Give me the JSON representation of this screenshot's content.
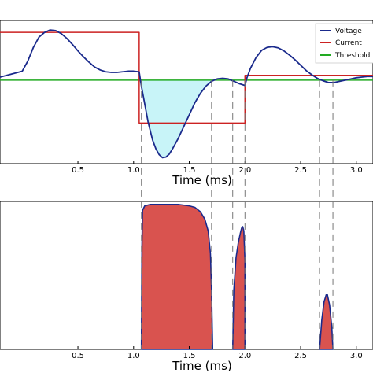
{
  "chart_data": [
    {
      "type": "line",
      "xlabel": "Time (ms)",
      "ylabel": "",
      "xlim": [
        -0.2,
        3.15
      ],
      "ylim": [
        -1.4,
        1.0
      ],
      "x_ticks": [
        0.5,
        1.0,
        1.5,
        2.0,
        2.5,
        3.0
      ],
      "x_tick_labels": [
        "0.5",
        "1.0",
        "1.5",
        "2.0",
        "2.5",
        "3.0"
      ],
      "grid": false,
      "legend_position": "top-right",
      "threshold": 0.0,
      "fill_color": "#c8f4f8",
      "series": [
        {
          "name": "Voltage",
          "color": "#1a2a8c",
          "x": [
            -0.2,
            -0.1,
            0.0,
            0.05,
            0.1,
            0.15,
            0.2,
            0.25,
            0.3,
            0.35,
            0.4,
            0.45,
            0.5,
            0.55,
            0.6,
            0.65,
            0.7,
            0.75,
            0.8,
            0.85,
            0.9,
            0.95,
            1.0,
            1.05,
            1.07,
            1.09,
            1.11,
            1.13,
            1.15,
            1.17,
            1.2,
            1.23,
            1.26,
            1.29,
            1.32,
            1.35,
            1.4,
            1.45,
            1.5,
            1.55,
            1.6,
            1.65,
            1.7,
            1.75,
            1.8,
            1.85,
            1.9,
            1.95,
            2.0,
            2.02,
            2.05,
            2.1,
            2.15,
            2.2,
            2.25,
            2.3,
            2.35,
            2.4,
            2.45,
            2.5,
            2.55,
            2.6,
            2.65,
            2.7,
            2.75,
            2.8,
            2.85,
            2.9,
            2.95,
            3.0,
            3.05,
            3.1,
            3.15
          ],
          "y": [
            0.05,
            0.1,
            0.15,
            0.32,
            0.55,
            0.72,
            0.8,
            0.84,
            0.83,
            0.78,
            0.7,
            0.6,
            0.49,
            0.39,
            0.3,
            0.22,
            0.17,
            0.14,
            0.13,
            0.13,
            0.14,
            0.15,
            0.15,
            0.14,
            -0.1,
            -0.3,
            -0.5,
            -0.7,
            -0.85,
            -1.0,
            -1.15,
            -1.25,
            -1.3,
            -1.29,
            -1.24,
            -1.15,
            -0.98,
            -0.78,
            -0.58,
            -0.38,
            -0.22,
            -0.1,
            -0.02,
            0.02,
            0.03,
            0.02,
            -0.02,
            -0.06,
            -0.09,
            0.05,
            0.2,
            0.38,
            0.5,
            0.55,
            0.56,
            0.54,
            0.49,
            0.42,
            0.34,
            0.25,
            0.16,
            0.09,
            0.03,
            -0.01,
            -0.04,
            -0.04,
            -0.02,
            0.0,
            0.02,
            0.04,
            0.05,
            0.06,
            0.06
          ]
        },
        {
          "name": "Current",
          "color": "#cc2222",
          "x": [
            -0.2,
            1.05,
            1.05,
            2.0,
            2.0,
            3.15
          ],
          "y": [
            0.8,
            0.8,
            -0.72,
            -0.72,
            0.08,
            0.08
          ]
        },
        {
          "name": "Threshold",
          "color": "#22aa22",
          "x": [
            -0.2,
            3.15
          ],
          "y": [
            0.0,
            0.0
          ]
        }
      ]
    },
    {
      "type": "area",
      "xlabel": "Time (ms)",
      "ylabel": "",
      "xlim": [
        -0.2,
        3.15
      ],
      "ylim": [
        0,
        1.0
      ],
      "x_ticks": [
        0.5,
        1.0,
        1.5,
        2.0,
        2.5,
        3.0
      ],
      "x_tick_labels": [
        "0.5",
        "1.0",
        "1.5",
        "2.0",
        "2.5",
        "3.0"
      ],
      "grid": false,
      "fill_color": "#d9534f",
      "edge_color": "#1a2a8c",
      "regions": [
        {
          "x": [
            1.07,
            1.075,
            1.08,
            1.1,
            1.15,
            1.2,
            1.3,
            1.4,
            1.5,
            1.55,
            1.6,
            1.64,
            1.67,
            1.69,
            1.7,
            1.71
          ],
          "y": [
            0,
            0.7,
            0.94,
            0.97,
            0.98,
            0.98,
            0.98,
            0.98,
            0.97,
            0.96,
            0.93,
            0.88,
            0.8,
            0.65,
            0.4,
            0
          ]
        },
        {
          "x": [
            1.89,
            1.9,
            1.92,
            1.94,
            1.96,
            1.97,
            1.98,
            1.99,
            2.0,
            2.0
          ],
          "y": [
            0,
            0.4,
            0.62,
            0.72,
            0.79,
            0.82,
            0.83,
            0.8,
            0.6,
            0
          ]
        },
        {
          "x": [
            2.67,
            2.69,
            2.71,
            2.73,
            2.74,
            2.76,
            2.78,
            2.79
          ],
          "y": [
            0,
            0.2,
            0.32,
            0.37,
            0.37,
            0.3,
            0.15,
            0
          ]
        }
      ]
    }
  ],
  "crossing_markers_ms": [
    1.07,
    1.7,
    1.89,
    2.0,
    2.67,
    2.79
  ]
}
